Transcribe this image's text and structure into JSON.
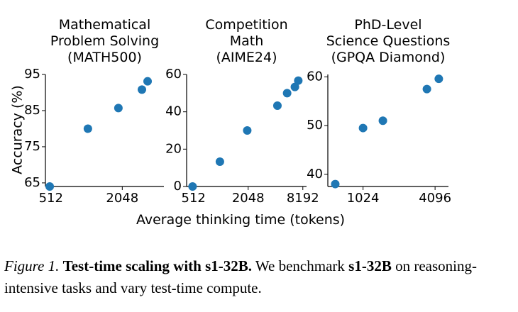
{
  "chart_data": [
    {
      "type": "scatter",
      "title": [
        "Mathematical",
        "Problem Solving",
        "(MATH500)"
      ],
      "xscale": "log2",
      "xticks": [
        512,
        2048
      ],
      "xticklabels": [
        "512",
        "2048"
      ],
      "yticks": [
        65,
        75,
        85,
        95
      ],
      "yticklabels": [
        "65",
        "75",
        "85",
        "95"
      ],
      "xlim": [
        460,
        4600
      ],
      "ylim": [
        64,
        95
      ],
      "x": [
        500,
        1050,
        1900,
        3000,
        3350
      ],
      "y": [
        64.0,
        80.0,
        85.7,
        90.8,
        93.1
      ],
      "color": "#1f77b4"
    },
    {
      "type": "scatter",
      "title": [
        "Competition",
        "Math",
        "(AIME24)"
      ],
      "xscale": "log2",
      "xticks": [
        512,
        2048,
        8192
      ],
      "xticklabels": [
        "512",
        "2048",
        "8192"
      ],
      "yticks": [
        0,
        20,
        40,
        60
      ],
      "yticklabels": [
        "0",
        "20",
        "40",
        "60"
      ],
      "xlim": [
        430,
        9000
      ],
      "ylim": [
        0,
        60
      ],
      "x": [
        500,
        1000,
        2000,
        4300,
        5500,
        6700,
        7300
      ],
      "y": [
        0.0,
        13.3,
        30.0,
        43.3,
        50.0,
        53.3,
        56.7
      ],
      "color": "#1f77b4"
    },
    {
      "type": "scatter",
      "title": [
        "PhD-Level",
        "Science Questions",
        "(GPQA Diamond)"
      ],
      "xscale": "log2",
      "xticks": [
        1024,
        4096
      ],
      "xticklabels": [
        "1024",
        "4096"
      ],
      "yticks": [
        40,
        50,
        60
      ],
      "yticklabels": [
        "40",
        "50",
        "60"
      ],
      "xlim": [
        520,
        5300
      ],
      "ylim": [
        37.5,
        60.5
      ],
      "x": [
        600,
        1024,
        1500,
        3500,
        4400
      ],
      "y": [
        38.0,
        49.5,
        51.0,
        57.5,
        59.6
      ],
      "color": "#1f77b4"
    }
  ],
  "ylabel": "Accuracy (%)",
  "xlabel": "Average thinking time (tokens)",
  "caption": {
    "label": "Figure 1.",
    "bold1": "Test-time scaling with s1-32B.",
    "text1": " We benchmark ",
    "bold2": "s1-32B",
    "text2": " on reasoning-intensive tasks and vary test-time compute."
  }
}
